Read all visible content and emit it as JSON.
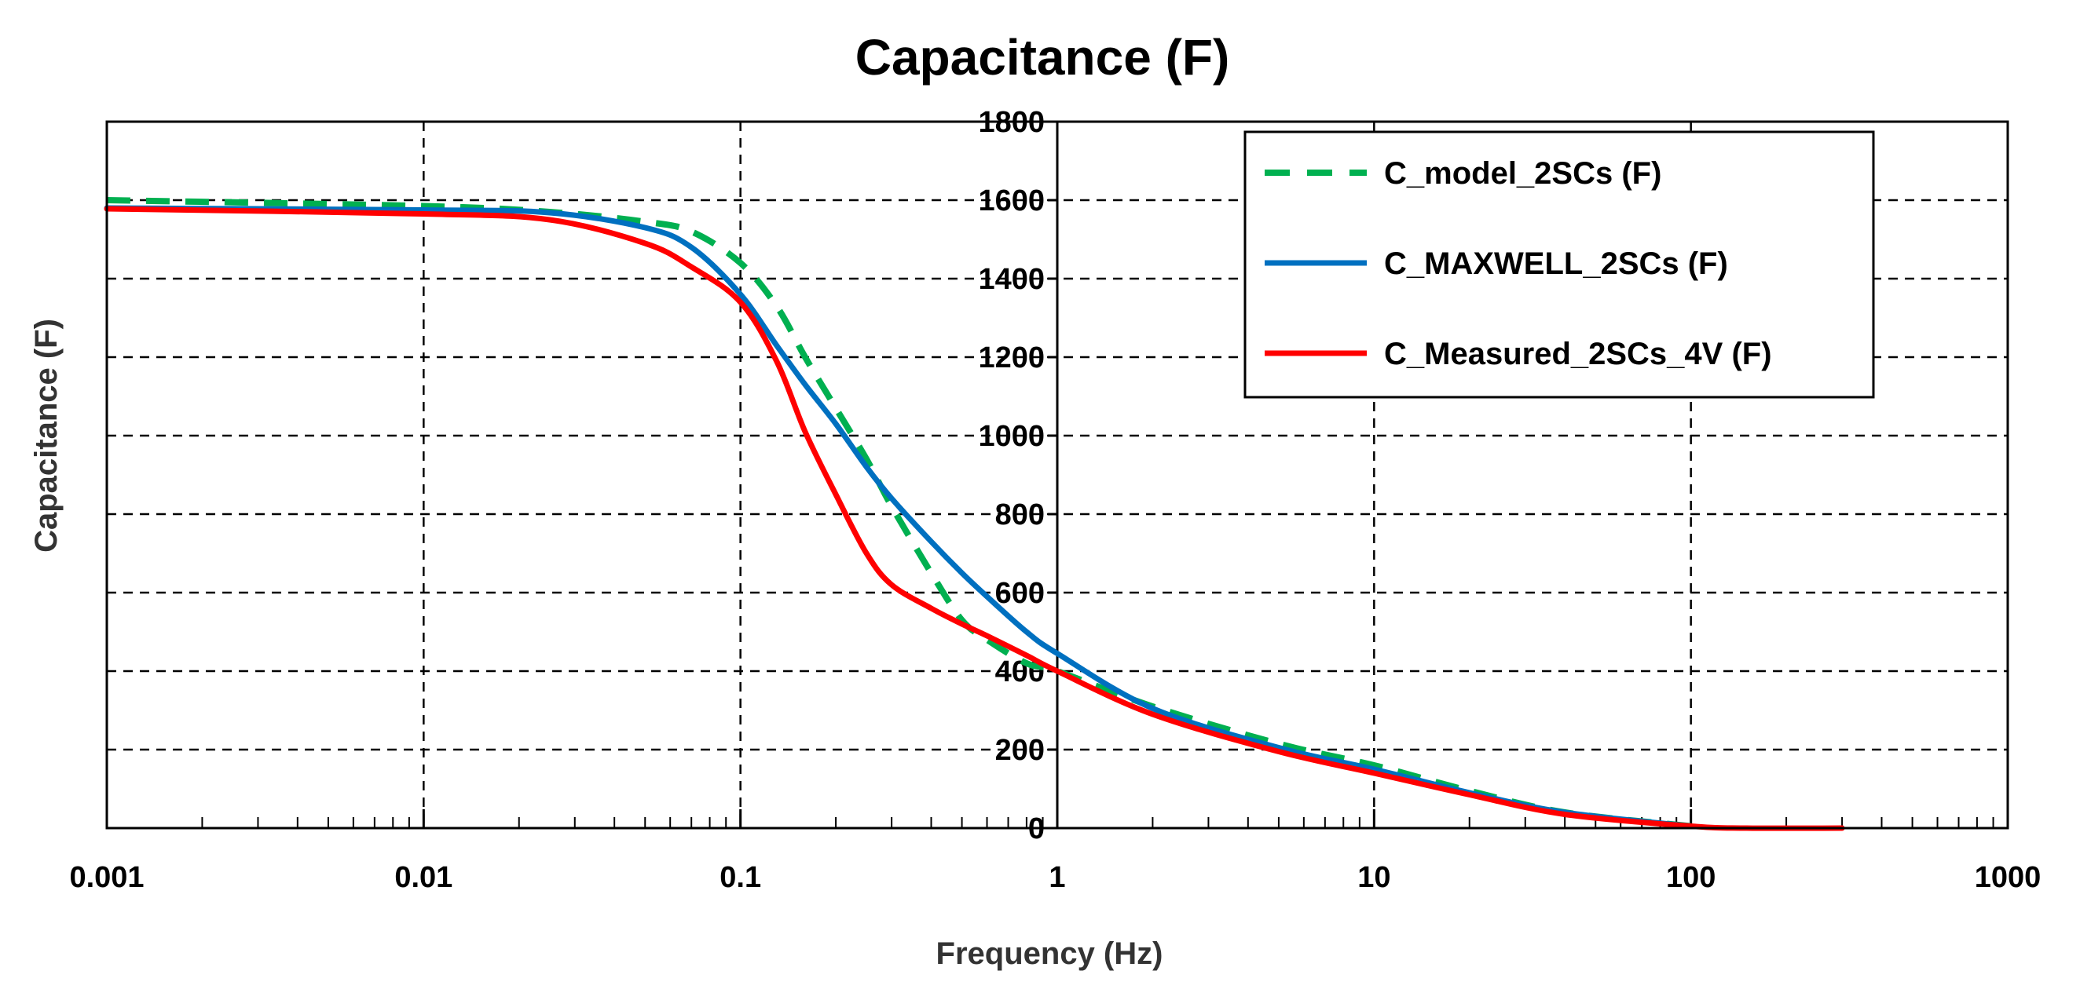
{
  "chart_data": {
    "type": "line",
    "title": "Capacitance (F)",
    "xlabel": "Frequency (Hz)",
    "ylabel": "Capacitance (F)",
    "xscale": "log",
    "xlim": [
      0.001,
      1000
    ],
    "ylim": [
      0,
      1800
    ],
    "x_ticks": [
      0.001,
      0.01,
      0.1,
      1,
      10,
      100,
      1000
    ],
    "x_tick_labels": [
      "0.001",
      "0.01",
      "0.1",
      "1",
      "10",
      "100",
      "1000"
    ],
    "y_ticks": [
      0,
      200,
      400,
      600,
      800,
      1000,
      1200,
      1400,
      1600,
      1800
    ],
    "y_tick_labels": [
      "0",
      "200",
      "400",
      "600",
      "800",
      "1000",
      "1200",
      "1400",
      "1600",
      "1800"
    ],
    "grid": true,
    "legend_position": "top-right",
    "series": [
      {
        "name": "C_model_2SCs (F)",
        "color": "#00b050",
        "style": "dashed",
        "x": [
          0.001,
          0.01,
          0.025,
          0.05,
          0.07,
          0.1,
          0.13,
          0.16,
          0.2,
          0.25,
          0.3,
          0.4,
          0.5,
          0.6,
          0.8,
          1,
          2,
          5,
          10,
          20,
          40,
          100
        ],
        "values": [
          1600,
          1585,
          1570,
          1545,
          1520,
          1440,
          1330,
          1200,
          1070,
          940,
          820,
          650,
          530,
          480,
          420,
          400,
          310,
          215,
          160,
          95,
          40,
          5
        ]
      },
      {
        "name": "C_MAXWELL_2SCs (F)",
        "color": "#0070c0",
        "style": "solid",
        "x": [
          0.001,
          0.01,
          0.025,
          0.05,
          0.07,
          0.1,
          0.13,
          0.16,
          0.2,
          0.25,
          0.3,
          0.4,
          0.5,
          0.6,
          0.8,
          1,
          2,
          5,
          10,
          20,
          40,
          100
        ],
        "values": [
          1580,
          1575,
          1568,
          1530,
          1480,
          1360,
          1230,
          1130,
          1030,
          920,
          840,
          730,
          650,
          590,
          500,
          445,
          305,
          205,
          150,
          90,
          40,
          5
        ]
      },
      {
        "name": "C_Measured_2SCs_4V (F)",
        "color": "#ff0000",
        "style": "solid",
        "x": [
          0.001,
          0.01,
          0.025,
          0.05,
          0.07,
          0.1,
          0.13,
          0.16,
          0.2,
          0.25,
          0.3,
          0.4,
          0.5,
          0.6,
          0.8,
          1,
          2,
          5,
          10,
          20,
          40,
          100,
          150,
          300
        ],
        "values": [
          1578,
          1565,
          1550,
          1490,
          1430,
          1340,
          1190,
          1010,
          850,
          700,
          620,
          560,
          520,
          490,
          440,
          400,
          290,
          195,
          140,
          85,
          35,
          5,
          0,
          0
        ]
      }
    ]
  }
}
